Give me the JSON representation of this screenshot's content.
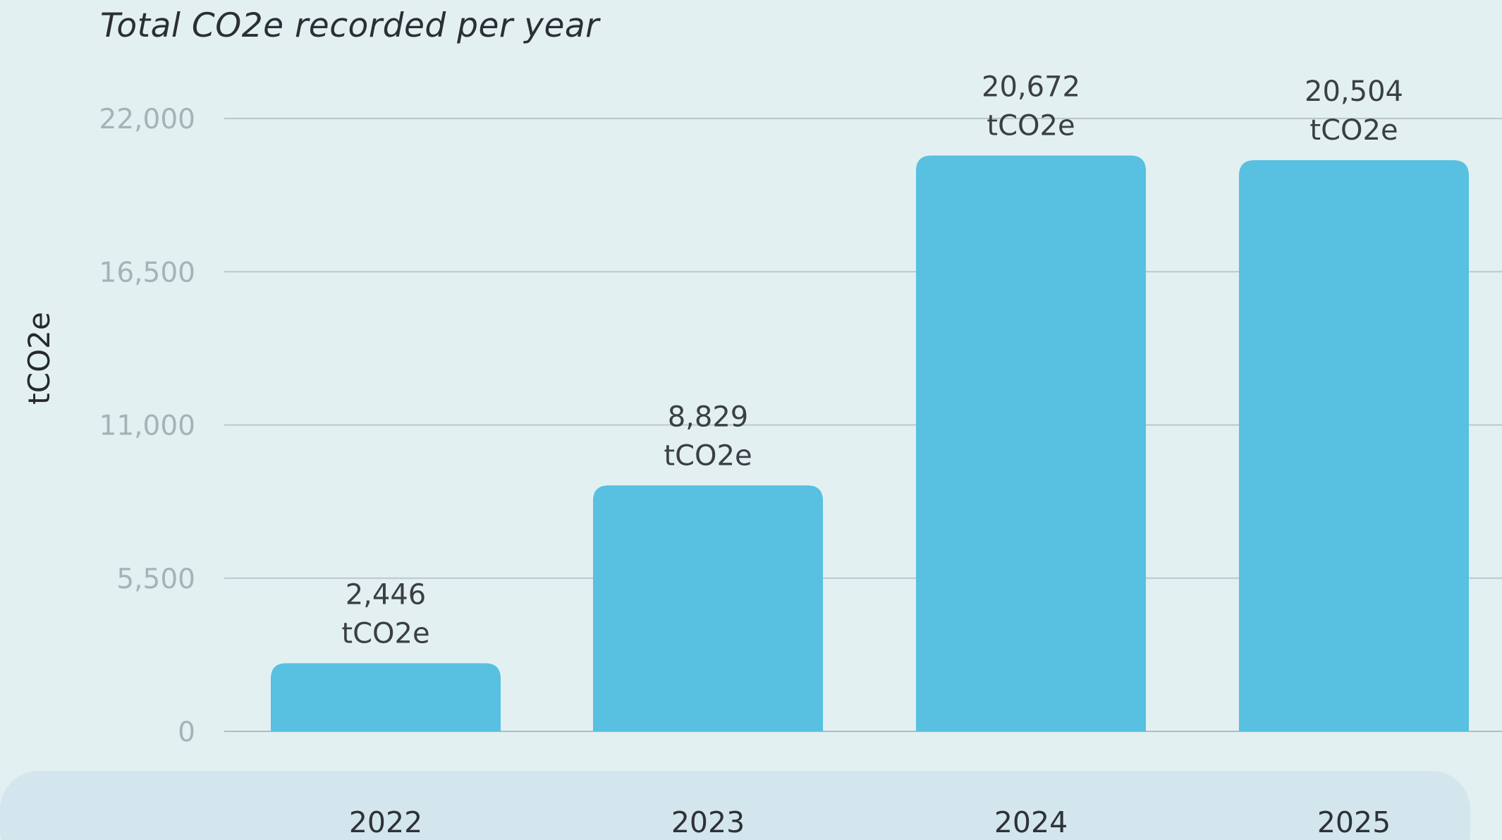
{
  "chart_data": {
    "type": "bar",
    "title": "Total CO2e recorded per year",
    "ylabel": "tCO2e",
    "xlabel": "",
    "categories": [
      "2022",
      "2023",
      "2024",
      "2025"
    ],
    "values": [
      2446,
      8829,
      20672,
      20504
    ],
    "data_labels": [
      {
        "value": "2,446",
        "unit": "tCO2e"
      },
      {
        "value": "8,829",
        "unit": "tCO2e"
      },
      {
        "value": "20,672",
        "unit": "tCO2e"
      },
      {
        "value": "20,504",
        "unit": "tCO2e"
      }
    ],
    "y_ticks": [
      0,
      5500,
      11000,
      16500,
      22000
    ],
    "y_tick_labels": [
      "0",
      "5,500",
      "11,000",
      "16,500",
      "22,000"
    ],
    "ylim": [
      0,
      22000
    ],
    "grid": true,
    "legend": "none",
    "bar_color": "#58c0e1",
    "x_band_color": "#d3e6ed",
    "background_color": "#e2f0f2"
  }
}
